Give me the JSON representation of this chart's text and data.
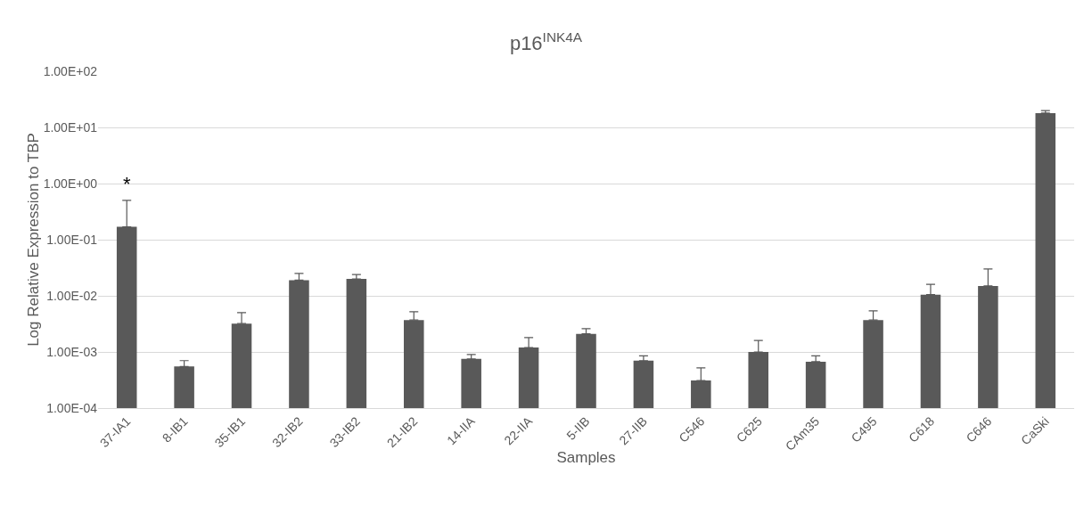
{
  "chart_data": {
    "type": "bar",
    "title": "p16$^{INK4A}$",
    "xlabel": "Samples",
    "ylabel": "Log Relative Expression to TBP",
    "categories": [
      "37-IA1",
      "8-IB1",
      "35-IB1",
      "32-IB2",
      "33-IB2",
      "21-IB2",
      "14-IIA",
      "22-IIA",
      "5-IIB",
      "27-IIB",
      "C546",
      "C625",
      "CAm35",
      "C495",
      "C618",
      "C646",
      "CaSki"
    ],
    "values": [
      0.17,
      0.00055,
      0.0032,
      0.019,
      0.02,
      0.0037,
      0.00075,
      0.0012,
      0.0021,
      0.0007,
      0.00031,
      0.001,
      0.00067,
      0.0037,
      0.0105,
      0.015,
      18
    ],
    "errors": [
      [
        0.17,
        0.5
      ],
      [
        0.00055,
        0.0007
      ],
      [
        0.0032,
        0.005
      ],
      [
        0.019,
        0.025
      ],
      [
        0.02,
        0.024
      ],
      [
        0.0037,
        0.0052
      ],
      [
        0.00075,
        0.0009
      ],
      [
        0.0012,
        0.0018
      ],
      [
        0.0021,
        0.0026
      ],
      [
        0.0007,
        0.00085
      ],
      [
        0.00031,
        0.00052
      ],
      [
        0.001,
        0.0016
      ],
      [
        0.00067,
        0.00085
      ],
      [
        0.0037,
        0.0054
      ],
      [
        0.0105,
        0.016
      ],
      [
        0.015,
        0.03
      ],
      [
        18,
        20
      ]
    ],
    "color": "#595959",
    "log": true,
    "ylim": [
      0.0001,
      100
    ],
    "yticks": [
      {
        "value": 0.0001,
        "label": "1.00E-04"
      },
      {
        "value": 0.001,
        "label": "1.00E-03"
      },
      {
        "value": 0.01,
        "label": "1.00E-02"
      },
      {
        "value": 0.1,
        "label": "1.00E-01"
      },
      {
        "value": 1,
        "label": "1.00E+00"
      },
      {
        "value": 10,
        "label": "1.00E+01"
      },
      {
        "value": 100,
        "label": "1.00E+02"
      }
    ],
    "grid": "y",
    "annotations": [
      "*"
    ]
  }
}
